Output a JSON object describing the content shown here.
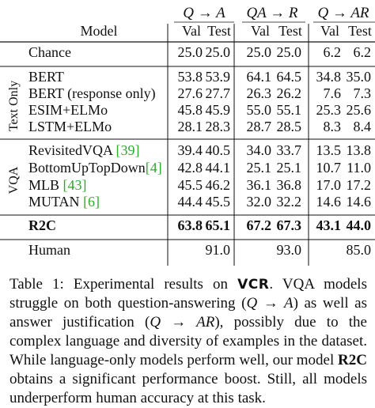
{
  "table": {
    "header": {
      "model": "Model",
      "groups": [
        "Q → A",
        "QA → R",
        "Q → AR"
      ],
      "sub": [
        "Val",
        "Test",
        "Val",
        "Test",
        "Val",
        "Test"
      ]
    },
    "section_labels": {
      "text_only": "Text Only",
      "vqa": "VQA"
    },
    "rows": [
      {
        "id": "chance",
        "name": "Chance",
        "ref": "",
        "values": [
          "25.0",
          "25.0",
          "25.0",
          "25.0",
          "6.2",
          "6.2"
        ]
      },
      {
        "id": "bert",
        "name": "BERT",
        "ref": "",
        "values": [
          "53.8",
          "53.9",
          "64.1",
          "64.5",
          "34.8",
          "35.0"
        ]
      },
      {
        "id": "bert-response",
        "name": "BERT (response only)",
        "ref": "",
        "values": [
          "27.6",
          "27.7",
          "26.3",
          "26.2",
          "7.6",
          "7.3"
        ]
      },
      {
        "id": "esim",
        "name": "ESIM+ELMo",
        "ref": "",
        "values": [
          "45.8",
          "45.9",
          "55.0",
          "55.1",
          "25.3",
          "25.6"
        ]
      },
      {
        "id": "lstm",
        "name": "LSTM+ELMo",
        "ref": "",
        "values": [
          "28.1",
          "28.3",
          "28.7",
          "28.5",
          "8.3",
          "8.4"
        ]
      },
      {
        "id": "revisitedvqa",
        "name": "RevisitedVQA ",
        "ref": "[39]",
        "values": [
          "39.4",
          "40.5",
          "34.0",
          "33.7",
          "13.5",
          "13.8"
        ]
      },
      {
        "id": "bottomup",
        "name": "BottomUpTopDown",
        "ref": "[4]",
        "values": [
          "42.8",
          "44.1",
          "25.1",
          "25.1",
          "10.7",
          "11.0"
        ]
      },
      {
        "id": "mlb",
        "name": "MLB ",
        "ref": "[43]",
        "values": [
          "45.5",
          "46.2",
          "36.1",
          "36.8",
          "17.0",
          "17.2"
        ]
      },
      {
        "id": "mutan",
        "name": "MUTAN ",
        "ref": "[6]",
        "values": [
          "44.4",
          "45.5",
          "32.0",
          "32.2",
          "14.6",
          "14.6"
        ]
      },
      {
        "id": "r2c",
        "name": "R2C",
        "ref": "",
        "bold": true,
        "values": [
          "63.8",
          "65.1",
          "67.2",
          "67.3",
          "43.1",
          "44.0"
        ]
      },
      {
        "id": "human",
        "name": "Human",
        "ref": "",
        "values": [
          "",
          "91.0",
          "",
          "93.0",
          "",
          "85.0"
        ]
      }
    ],
    "ref_color": "#2eaa2e"
  },
  "caption": {
    "label": "Table 1: Experimental results on ",
    "vcr": "VCR",
    "part1": ". VQA models struggle on both question-answering (",
    "qa1": "Q → A",
    "part2": ") as well as answer justification (",
    "qa2": "Q → AR",
    "part3": "), possibly due to the complex language and diversity of examples in the dataset. While language-only models perform well, our model ",
    "r2c": "R2C",
    "part4": " obtains a significant performance boost. Still, all models underperform human accuracy at this task."
  }
}
